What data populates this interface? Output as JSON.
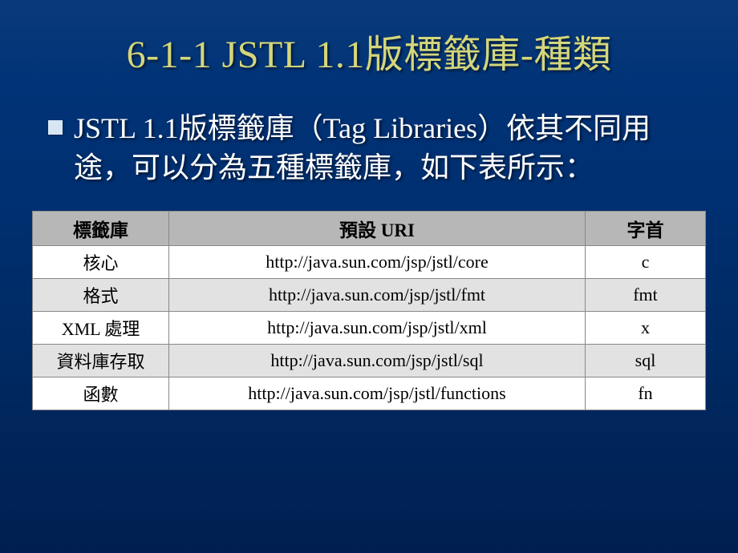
{
  "slide": {
    "title": "6-1-1 JSTL 1.1版標籤庫-種類",
    "bullet_text": "JSTL 1.1版標籤庫（Tag Libraries）依其不同用途，可以分為五種標籤庫，如下表所示：",
    "colors": {
      "title_color": "#d4d67a",
      "text_color": "#ffffff",
      "bg_top": "#0a3a7a",
      "bg_bottom": "#001f50",
      "bullet_color": "#d8e6f4",
      "th_bg": "#b7b7b7",
      "row_alt_bg": "#e2e2e2",
      "row_bg": "#ffffff",
      "border_color": "#888888"
    },
    "table": {
      "columns": [
        "標籤庫",
        "預設 URI",
        "字首"
      ],
      "rows": [
        {
          "lib": "核心",
          "uri": "http://java.sun.com/jsp/jstl/core",
          "prefix": "c",
          "alt": false
        },
        {
          "lib": "格式",
          "uri": "http://java.sun.com/jsp/jstl/fmt",
          "prefix": "fmt",
          "alt": true
        },
        {
          "lib": "XML 處理",
          "uri": "http://java.sun.com/jsp/jstl/xml",
          "prefix": "x",
          "alt": false
        },
        {
          "lib": "資料庫存取",
          "uri": "http://java.sun.com/jsp/jstl/sql",
          "prefix": "sql",
          "alt": true
        },
        {
          "lib": "函數",
          "uri": "http://java.sun.com/jsp/jstl/functions",
          "prefix": "fn",
          "alt": false
        }
      ]
    }
  }
}
